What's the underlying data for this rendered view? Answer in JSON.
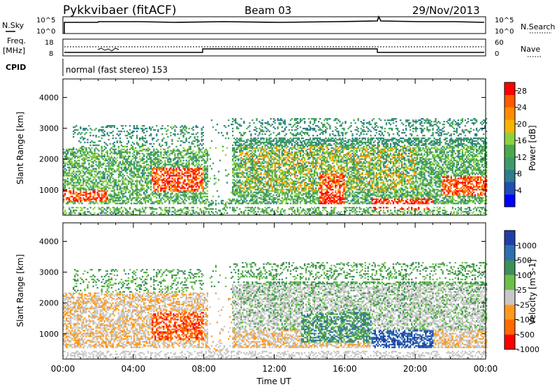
{
  "header": {
    "station": "Pykkvibaer (fitACF)",
    "beam": "Beam 03",
    "date": "29/Nov/2013"
  },
  "top_panels": {
    "nsky": {
      "label": "N.Sky",
      "ticks": [
        "10^5",
        "10^0"
      ],
      "right_label": "N.Search",
      "right_ticks": [
        "10^5",
        "10^0"
      ]
    },
    "freq": {
      "label_line1": "Freq.",
      "label_line2": "[MHz]",
      "ticks": [
        "18",
        "8"
      ],
      "right_label": "Nave",
      "right_ticks": [
        "60",
        "0"
      ]
    },
    "cpid": {
      "label": "CPID",
      "text": "normal (fast stereo) 153"
    }
  },
  "chart_data": [
    {
      "type": "heatmap",
      "panel": "power",
      "ylabel": "Slant Range [km]",
      "xlabel": "",
      "yticks": [
        1000,
        2000,
        3000,
        4000
      ],
      "ylim": [
        180,
        4600
      ],
      "x_ticks": [
        "00:00",
        "04:00",
        "08:00",
        "12:00",
        "16:00",
        "20:00",
        "00:00"
      ],
      "xlim_hours": [
        0,
        24
      ],
      "colorbar": {
        "label": "Power [dB]",
        "ticks": [
          "28",
          "24",
          "20",
          "16",
          "12",
          "8",
          "4"
        ],
        "range": [
          0,
          30
        ],
        "colors": [
          "#0000ff",
          "#1f4fb4",
          "#2e7d8c",
          "#3d9b6a",
          "#4aa94e",
          "#8fd13d",
          "#f6b400",
          "#ff8c00",
          "#ff5a00",
          "#ff0000"
        ]
      }
    },
    {
      "type": "heatmap",
      "panel": "velocity",
      "ylabel": "Slant Range [km]",
      "xlabel": "Time UT",
      "yticks": [
        1000,
        2000,
        3000,
        4000
      ],
      "ylim": [
        180,
        4600
      ],
      "x_ticks": [
        "00:00",
        "04:00",
        "08:00",
        "12:00",
        "16:00",
        "20:00",
        "00:00"
      ],
      "xlim_hours": [
        0,
        24
      ],
      "colorbar": {
        "label": "Velocity [m s-1]",
        "ticks": [
          "1000",
          "500",
          "100",
          "25",
          "-25",
          "-100",
          "-500",
          "-1000"
        ],
        "colors": [
          "#1f3fa8",
          "#2e6fb0",
          "#3d8f5c",
          "#6cc04a",
          "#c8c8c8",
          "#ff9a1a",
          "#ff6a00",
          "#ff0000"
        ]
      }
    }
  ]
}
